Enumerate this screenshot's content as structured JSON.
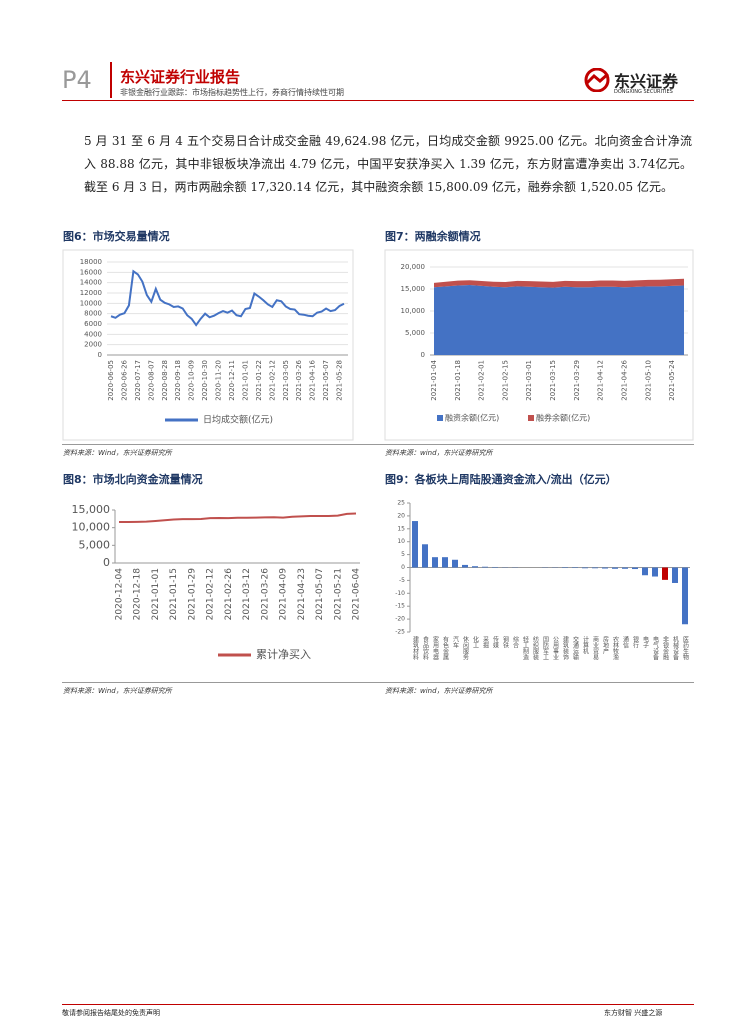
{
  "header": {
    "page": "P4",
    "title": "东兴证券行业报告",
    "subtitle": "非银金融行业跟踪：市场指标趋势性上行，券商行情持续性可期",
    "logo_cn": "东兴证券",
    "logo_en": "DONGXING SECURITIES"
  },
  "paragraph": "5 月 31 至 6 月 4 五个交易日合计成交金融 49,624.98 亿元，日均成交金额 9925.00 亿元。北向资金合计净流入 88.88 亿元，其中非银板块净流出 4.79 亿元，中国平安获净买入 1.39 亿元，东方财富遭净卖出 3.74亿元。截至 6 月 3 日，两市两融余额 17,320.14 亿元，其中融资余额 15,800.09 亿元，融券余额 1,520.05 亿元。",
  "chart_data": [
    {
      "type": "line",
      "title": "图6：市场交易量情况",
      "source": "资料来源：Wind，东兴证券研究所",
      "categories": [
        "2020-06-05",
        null,
        null,
        "2020-06-26",
        null,
        null,
        "2020-07-17",
        null,
        null,
        "2020-08-07",
        null,
        null,
        "2020-08-28",
        null,
        null,
        "2020-09-18",
        null,
        null,
        "2020-10-09",
        null,
        null,
        "2020-10-30",
        null,
        null,
        "2020-11-20",
        null,
        null,
        "2020-12-11",
        null,
        null,
        "2021-01-01",
        null,
        null,
        "2021-01-22",
        null,
        null,
        "2021-02-12",
        null,
        null,
        "2021-03-05",
        null,
        null,
        "2021-03-26",
        null,
        null,
        "2021-04-16",
        null,
        null,
        "2021-05-07",
        null,
        null,
        "2021-05-28",
        null
      ],
      "series": [
        {
          "name": "日均成交额(亿元)",
          "color": "#4472c4",
          "values": [
            7500,
            7200,
            7800,
            8100,
            9600,
            16200,
            15600,
            14200,
            11600,
            10300,
            12800,
            10700,
            10100,
            9800,
            9300,
            9400,
            9000,
            7700,
            7000,
            5800,
            7000,
            8000,
            7300,
            7600,
            8100,
            8500,
            8200,
            8600,
            7700,
            7500,
            8900,
            9100,
            11900,
            11300,
            10600,
            9800,
            9300,
            10600,
            10400,
            9400,
            8900,
            8800,
            7900,
            7800,
            7600,
            7500,
            8200,
            8400,
            9000,
            8500,
            8700,
            9500,
            9925
          ]
        }
      ],
      "ylim": [
        0,
        18000
      ],
      "yticks": [
        0,
        2000,
        4000,
        6000,
        8000,
        10000,
        12000,
        14000,
        16000,
        18000
      ],
      "grid": true
    },
    {
      "type": "area",
      "title": "图7：两融余额情况",
      "source": "资料来源：wind，东兴证券研究所",
      "categories": [
        "2021-01-04",
        null,
        "2021-01-18",
        null,
        "2021-02-01",
        null,
        "2021-02-15",
        null,
        "2021-03-01",
        null,
        "2021-03-15",
        null,
        "2021-03-29",
        null,
        "2021-04-12",
        null,
        "2021-04-26",
        null,
        "2021-05-10",
        null,
        "2021-05-24",
        null
      ],
      "series": [
        {
          "name": "融资余额(亿元)",
          "color": "#4472c4",
          "values": [
            15400,
            15600,
            15800,
            15900,
            15700,
            15500,
            15400,
            15600,
            15500,
            15400,
            15300,
            15500,
            15400,
            15400,
            15500,
            15500,
            15400,
            15500,
            15600,
            15600,
            15700,
            15800
          ]
        },
        {
          "name": "融券余额(亿元)",
          "color": "#c0504d",
          "values": [
            1000,
            1050,
            1100,
            1100,
            1120,
            1150,
            1200,
            1250,
            1280,
            1300,
            1320,
            1350,
            1380,
            1400,
            1420,
            1430,
            1450,
            1470,
            1480,
            1500,
            1510,
            1520
          ]
        }
      ],
      "stacked": true,
      "ylim": [
        0,
        20000
      ],
      "yticks": [
        0,
        {
          "value": 5000,
          "label": "5,000"
        },
        {
          "value": 10000,
          "label": "10,000"
        },
        {
          "value": 15000,
          "label": "15,000"
        },
        {
          "value": 20000,
          "label": "20,000"
        }
      ],
      "grid": true
    },
    {
      "type": "line",
      "title": "图8：市场北向资金流量情况",
      "source": "资料来源：Wind，东兴证券研究所",
      "categories": [
        "2020-12-04",
        null,
        "2020-12-18",
        null,
        "2021-01-01",
        null,
        "2021-01-15",
        null,
        "2021-01-29",
        null,
        "2021-02-12",
        null,
        "2021-02-26",
        null,
        "2021-03-12",
        null,
        "2021-03-26",
        null,
        "2021-04-09",
        null,
        "2021-04-23",
        null,
        "2021-05-07",
        null,
        "2021-05-21",
        null,
        "2021-06-04"
      ],
      "series": [
        {
          "name": "累计净买入",
          "color": "#c0504d",
          "values": [
            11600,
            11600,
            11650,
            11700,
            11900,
            12100,
            12300,
            12400,
            12400,
            12450,
            12700,
            12750,
            12700,
            12800,
            12800,
            12850,
            12900,
            12950,
            12850,
            13100,
            13200,
            13300,
            13300,
            13300,
            13400,
            13900,
            14000
          ]
        }
      ],
      "ylim": [
        0,
        15000
      ],
      "yticks": [
        0,
        {
          "value": 5000,
          "label": "5,000"
        },
        {
          "value": 10000,
          "label": "10,000"
        },
        {
          "value": 15000,
          "label": "15,000"
        }
      ],
      "grid": false
    },
    {
      "type": "bar",
      "title": "图9：各板块上周陆股通资金流入/流出（亿元）",
      "source": "资料来源：wind，东兴证券研究所",
      "categories": [
        "建筑材料",
        "食品饮料",
        "家用电器",
        "有色金属",
        "汽车",
        "休闲服务",
        "化工",
        "采掘",
        "传媒",
        "钢铁",
        "综合",
        "轻工制造",
        "纺织服装",
        "国防军工",
        "公用事业",
        "建筑装饰",
        "交通运输",
        "计算机",
        "商业贸易",
        "房地产",
        "农林牧渔",
        "通信",
        "银行",
        "电子",
        "电气设备",
        "非银金融",
        "机械设备",
        "医药生物"
      ],
      "values": [
        18,
        9,
        4,
        4,
        3,
        1,
        0.5,
        0.3,
        0.2,
        0.1,
        0.1,
        0,
        0,
        -0.1,
        -0.1,
        -0.2,
        -0.2,
        -0.3,
        -0.3,
        -0.4,
        -0.5,
        -0.5,
        -0.6,
        -3,
        -3.5,
        -4.79,
        -6,
        -22
      ],
      "colors": [
        "#4472c4",
        "#4472c4",
        "#4472c4",
        "#4472c4",
        "#4472c4",
        "#4472c4",
        "#4472c4",
        "#4472c4",
        "#4472c4",
        "#4472c4",
        "#4472c4",
        "#4472c4",
        "#4472c4",
        "#4472c4",
        "#4472c4",
        "#4472c4",
        "#4472c4",
        "#4472c4",
        "#4472c4",
        "#4472c4",
        "#4472c4",
        "#4472c4",
        "#4472c4",
        "#4472c4",
        "#4472c4",
        "#c00000",
        "#4472c4",
        "#4472c4"
      ],
      "ylim": [
        -25,
        25
      ],
      "yticks": [
        -25,
        -20,
        -15,
        -10,
        -5,
        0,
        5,
        10,
        15,
        20,
        25
      ],
      "grid": false
    }
  ],
  "footer": {
    "left": "敬请参阅报告结尾处的免责声明",
    "right": "东方财智 兴盛之源"
  }
}
